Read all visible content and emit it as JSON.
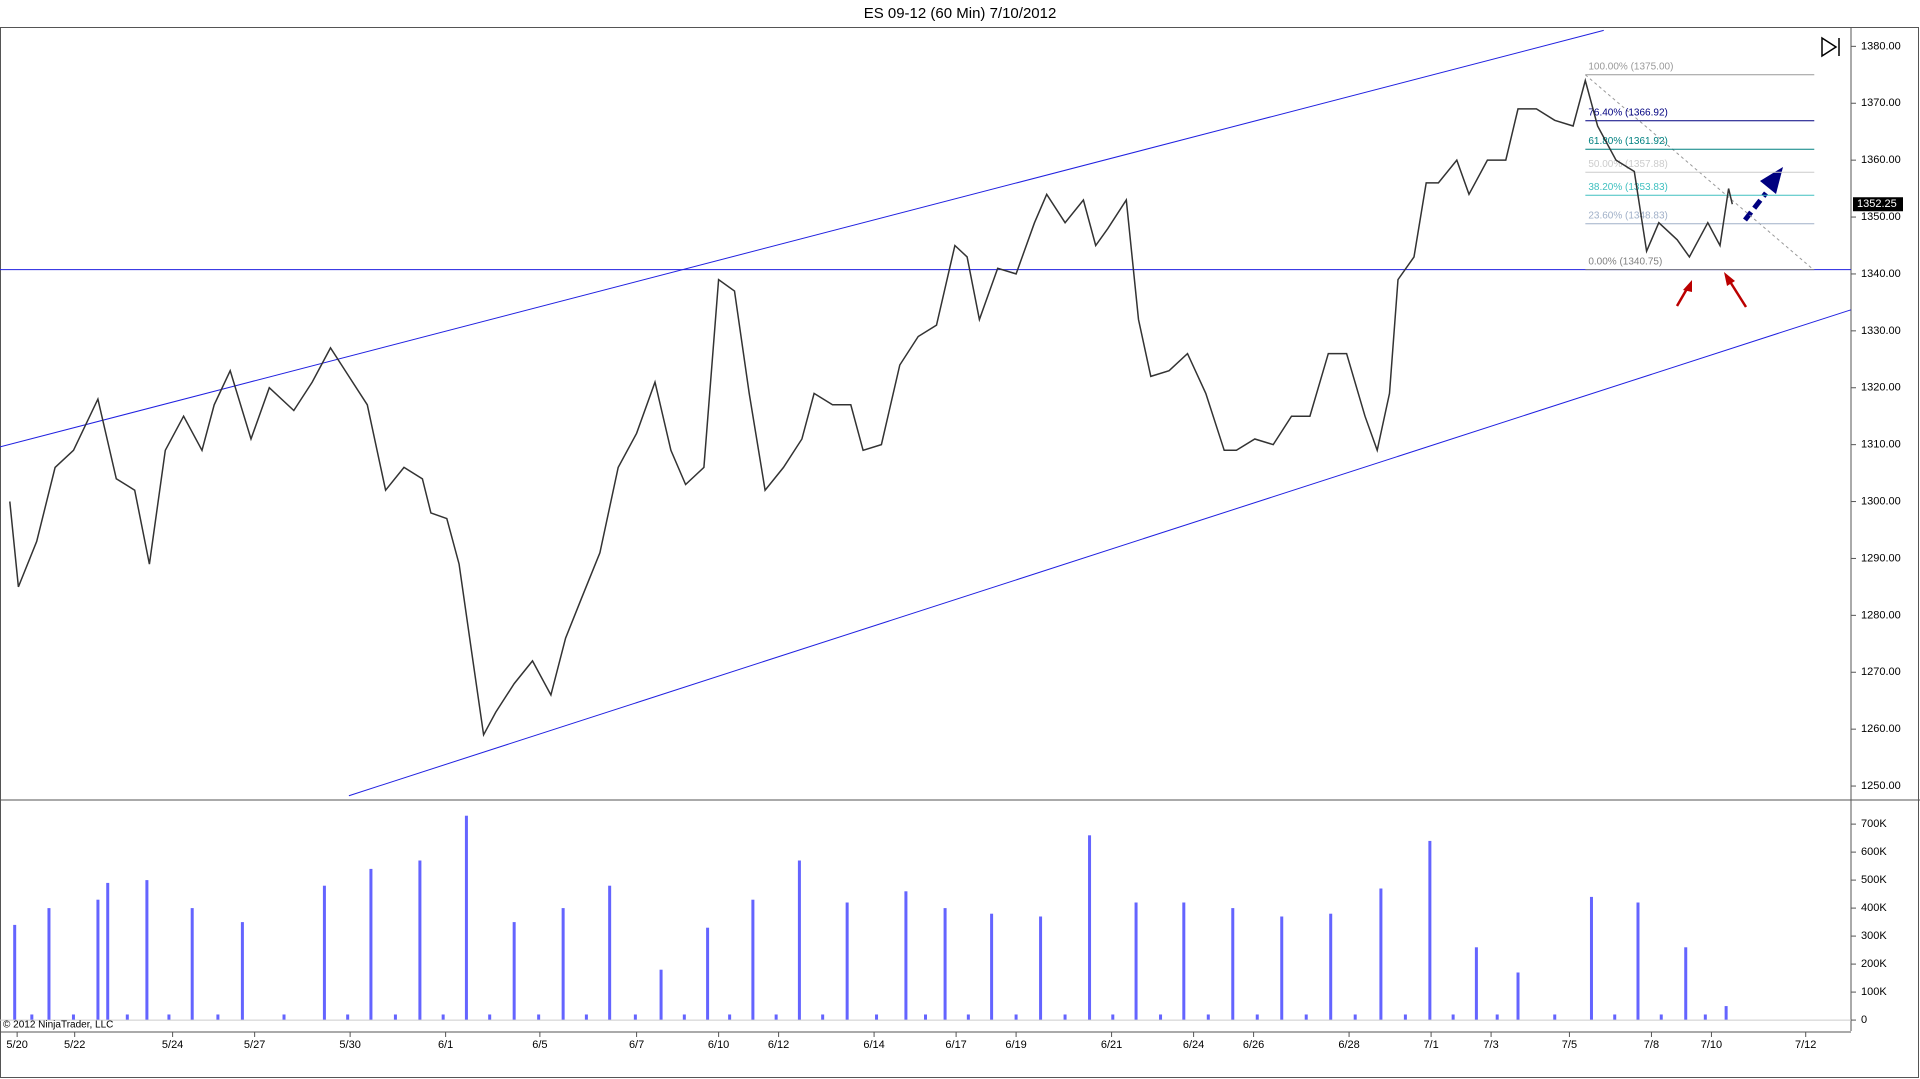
{
  "chart_data": [
    {
      "type": "line",
      "title": "ES 09-12 (60 Min)  7/10/2012",
      "color": "#333333",
      "x": [
        8,
        15,
        30,
        45,
        60,
        80,
        95,
        110,
        122,
        135,
        150,
        165,
        175,
        188,
        205,
        220,
        240,
        255,
        270,
        285,
        300,
        315,
        330,
        345,
        352,
        365,
        375,
        385,
        395,
        405,
        420,
        435,
        450,
        462,
        475,
        490,
        505,
        520,
        535,
        548,
        560,
        575,
        587,
        600,
        612,
        625,
        640,
        655,
        665,
        680,
        695,
        705,
        720,
        735,
        750,
        765,
        780,
        790,
        800,
        815,
        830,
        845,
        855,
        870,
        885,
        895,
        905,
        920,
        930,
        940,
        955,
        970,
        985,
        1000,
        1010,
        1025,
        1040,
        1055,
        1070,
        1085,
        1100,
        1115,
        1125,
        1135,
        1142,
        1155,
        1165,
        1175,
        1190,
        1200,
        1215,
        1230,
        1240,
        1255,
        1270,
        1285,
        1295,
        1305,
        1320,
        1335,
        1345,
        1355,
        1370,
        1380,
        1395,
        1405,
        1412,
        1415
      ],
      "values": [
        1300,
        1285,
        1293,
        1306,
        1309,
        1318,
        1304,
        1302,
        1289,
        1309,
        1315,
        1309,
        1317,
        1323,
        1311,
        1320,
        1316,
        1321,
        1327,
        1322,
        1317,
        1302,
        1306,
        1304,
        1298,
        1297,
        1289,
        1274,
        1259,
        1263,
        1268,
        1272,
        1266,
        1276,
        1283,
        1291,
        1306,
        1312,
        1321,
        1309,
        1303,
        1306,
        1339,
        1337,
        1319,
        1302,
        1306,
        1311,
        1319,
        1317,
        1317,
        1309,
        1310,
        1324,
        1329,
        1331,
        1345,
        1343,
        1332,
        1341,
        1340,
        1349,
        1354,
        1349,
        1353,
        1345,
        1348,
        1353,
        1332,
        1322,
        1323,
        1326,
        1319,
        1309,
        1309,
        1311,
        1310,
        1315,
        1315,
        1326,
        1326,
        1315,
        1309,
        1319,
        1339,
        1343,
        1356,
        1356,
        1360,
        1354,
        1360,
        1360,
        1369,
        1369,
        1367,
        1366,
        1374,
        1366,
        1360,
        1358,
        1344,
        1349,
        1346,
        1343,
        1349,
        1345,
        1355,
        1352.25
      ],
      "xlim": [
        0,
        1512
      ],
      "ylim": [
        1247.9,
        1383.4
      ],
      "yticks": [
        {
          "value": 1250,
          "label": "1250.00"
        },
        {
          "value": 1260,
          "label": "1260.00"
        },
        {
          "value": 1270,
          "label": "1270.00"
        },
        {
          "value": 1280,
          "label": "1280.00"
        },
        {
          "value": 1290,
          "label": "1290.00"
        },
        {
          "value": 1300,
          "label": "1300.00"
        },
        {
          "value": 1310,
          "label": "1310.00"
        },
        {
          "value": 1320,
          "label": "1320.00"
        },
        {
          "value": 1330,
          "label": "1330.00"
        },
        {
          "value": 1340,
          "label": "1340.00"
        },
        {
          "value": 1350,
          "label": "1350.00"
        },
        {
          "value": 1360,
          "label": "1360.00"
        },
        {
          "value": 1370,
          "label": "1370.00"
        },
        {
          "value": 1380,
          "label": "1380.00"
        }
      ],
      "last_price": {
        "value": 1352.25,
        "label": "1352.25"
      },
      "fib_levels": [
        {
          "label": "100.00% (1375.00)",
          "value": 1375,
          "color": "#999999"
        },
        {
          "label": "76.40% (1366.92)",
          "value": 1366.92,
          "color": "#000080"
        },
        {
          "label": "61.80% (1361.92)",
          "value": 1361.92,
          "color": "#008080"
        },
        {
          "label": "50.00% (1357.88)",
          "value": 1357.88,
          "color": "#cccccc"
        },
        {
          "label": "38.20% (1353.83)",
          "value": 1353.83,
          "color": "#40c0c0"
        },
        {
          "label": "23.60% (1348.83)",
          "value": 1348.83,
          "color": "#a0b0c8"
        },
        {
          "label": "0.00% (1340.75)",
          "value": 1340.75,
          "color": "#808080"
        }
      ],
      "fib_x": [
        1295,
        1482
      ],
      "lines": [
        {
          "x": [
            0,
            1310
          ],
          "y": [
            1309.6,
            1382.8
          ],
          "color": "#2020e0"
        },
        {
          "x": [
            285,
            1512
          ],
          "y": [
            1248.3,
            1333.7
          ],
          "color": "#2020e0"
        },
        {
          "x": [
            0,
            1512
          ],
          "y": [
            1340.75,
            1340.75
          ],
          "color": "#2020e0"
        },
        {
          "x": [
            1295,
            1480
          ],
          "y": [
            1375,
            1341
          ],
          "color": "#999999"
        }
      ]
    },
    {
      "type": "bar",
      "color": "#6464ff",
      "annotation": "© 2012 NinjaTrader, LLC",
      "x": [
        12,
        26,
        40,
        60,
        80,
        88,
        104,
        120,
        138,
        157,
        178,
        198,
        232,
        265,
        284,
        303,
        323,
        343,
        362,
        381,
        400,
        420,
        440,
        460,
        479,
        498,
        519,
        540,
        559,
        578,
        596,
        615,
        634,
        653,
        672,
        692,
        716,
        740,
        756,
        772,
        791,
        810,
        830,
        850,
        870,
        890,
        909,
        928,
        948,
        967,
        987,
        1007,
        1027,
        1047,
        1067,
        1087,
        1107,
        1128,
        1148,
        1168,
        1187,
        1206,
        1223,
        1240,
        1270,
        1300,
        1319,
        1338,
        1357,
        1377,
        1393,
        1410
      ],
      "values": [
        340000,
        20000,
        400000,
        20000,
        430000,
        490000,
        20000,
        500000,
        20000,
        400000,
        20000,
        350000,
        20000,
        480000,
        20000,
        540000,
        20000,
        570000,
        20000,
        730000,
        20000,
        350000,
        20000,
        400000,
        20000,
        480000,
        20000,
        180000,
        20000,
        330000,
        20000,
        430000,
        20000,
        570000,
        20000,
        420000,
        20000,
        460000,
        20000,
        400000,
        20000,
        380000,
        20000,
        370000,
        20000,
        660000,
        20000,
        420000,
        20000,
        420000,
        20000,
        400000,
        20000,
        370000,
        20000,
        380000,
        20000,
        470000,
        20000,
        640000,
        20000,
        260000,
        20000,
        170000,
        20000,
        440000,
        20000,
        420000,
        20000,
        260000,
        20000,
        50000
      ],
      "xlim": [
        0,
        1512
      ],
      "ylim": [
        -39000,
        779000
      ],
      "yticks": [
        0,
        {
          "value": 100000,
          "label": "100K"
        },
        {
          "value": 200000,
          "label": "200K"
        },
        {
          "value": 300000,
          "label": "300K"
        },
        {
          "value": 400000,
          "label": "400K"
        },
        {
          "value": 500000,
          "label": "500K"
        },
        {
          "value": 600000,
          "label": "600K"
        },
        {
          "value": 700000,
          "label": "700K"
        }
      ],
      "xticks": [
        {
          "value": 14,
          "label": "5/20"
        },
        {
          "value": 61,
          "label": "5/22"
        },
        {
          "value": 141,
          "label": "5/24"
        },
        {
          "value": 208,
          "label": "5/27"
        },
        {
          "value": 286,
          "label": "5/30"
        },
        {
          "value": 364,
          "label": "6/1"
        },
        {
          "value": 441,
          "label": "6/5"
        },
        {
          "value": 520,
          "label": "6/7"
        },
        {
          "value": 587,
          "label": "6/10"
        },
        {
          "value": 636,
          "label": "6/12"
        },
        {
          "value": 714,
          "label": "6/14"
        },
        {
          "value": 781,
          "label": "6/17"
        },
        {
          "value": 830,
          "label": "6/19"
        },
        {
          "value": 908,
          "label": "6/21"
        },
        {
          "value": 975,
          "label": "6/24"
        },
        {
          "value": 1024,
          "label": "6/26"
        },
        {
          "value": 1102,
          "label": "6/28"
        },
        {
          "value": 1169,
          "label": "7/1"
        },
        {
          "value": 1218,
          "label": "7/3"
        },
        {
          "value": 1282,
          "label": "7/5"
        },
        {
          "value": 1349,
          "label": "7/8"
        },
        {
          "value": 1398,
          "label": "7/10"
        },
        {
          "value": 1475,
          "label": "7/12"
        }
      ]
    }
  ]
}
